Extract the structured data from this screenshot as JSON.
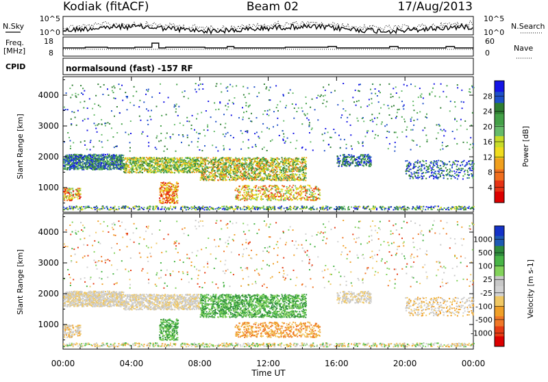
{
  "header": {
    "station": "Kodiak (fitACF)",
    "beam": "Beam 02",
    "date": "17/Aug/2013"
  },
  "strip_panels": {
    "nsky_label": "N.Sky",
    "nsearch_label": "N.Search",
    "noise_ticks": [
      "10^5",
      "10^0"
    ],
    "freq_label_line1": "Freq.",
    "freq_label_line2": "[MHz]",
    "freq_ticks": [
      "18",
      "8"
    ],
    "nave_label": "Nave",
    "nave_ticks": [
      "60",
      "0"
    ],
    "cpid_label": "CPID",
    "cpid_text": "normalsound (fast) -157 RF"
  },
  "chart_data": [
    {
      "type": "heatmap",
      "title": "",
      "xlabel": "Time UT",
      "ylabel": "Slant Range [km]",
      "x_ticks": [
        "00:00",
        "04:00",
        "08:00",
        "12:00",
        "16:00",
        "20:00",
        "00:00"
      ],
      "y_ticks": [
        "4000",
        "3000",
        "2000",
        "1000"
      ],
      "ylim": [
        200,
        4600
      ],
      "colorbar": {
        "label": "Power [dB]",
        "ticks": [
          "28",
          "24",
          "20",
          "16",
          "12",
          "8",
          "4"
        ],
        "colors": [
          "#1414e6",
          "#1e50c8",
          "#2e7d32",
          "#43a047",
          "#66bb6a",
          "#c8dc28",
          "#f0dc1e",
          "#f0a01e",
          "#f06e1e",
          "#e63214",
          "#dc0000"
        ]
      }
    },
    {
      "type": "heatmap",
      "title": "",
      "xlabel": "Time UT",
      "ylabel": "Slant Range [km]",
      "x_ticks": [
        "00:00",
        "04:00",
        "08:00",
        "12:00",
        "16:00",
        "20:00",
        "00:00"
      ],
      "y_ticks": [
        "4000",
        "3000",
        "2000",
        "1000"
      ],
      "ylim": [
        200,
        4600
      ],
      "colorbar": {
        "label": "Velocity [m s-1]",
        "ticks": [
          "1000",
          "500",
          "100",
          "25",
          "-25",
          "-100",
          "-500",
          "-1000"
        ],
        "colors": [
          "#1432c8",
          "#1e5ab4",
          "#2e8b3c",
          "#48b446",
          "#82d25a",
          "#c8c8c8",
          "#d2d2d2",
          "#f0c864",
          "#f0a028",
          "#f07828",
          "#e63c14",
          "#dc0000"
        ]
      }
    }
  ]
}
